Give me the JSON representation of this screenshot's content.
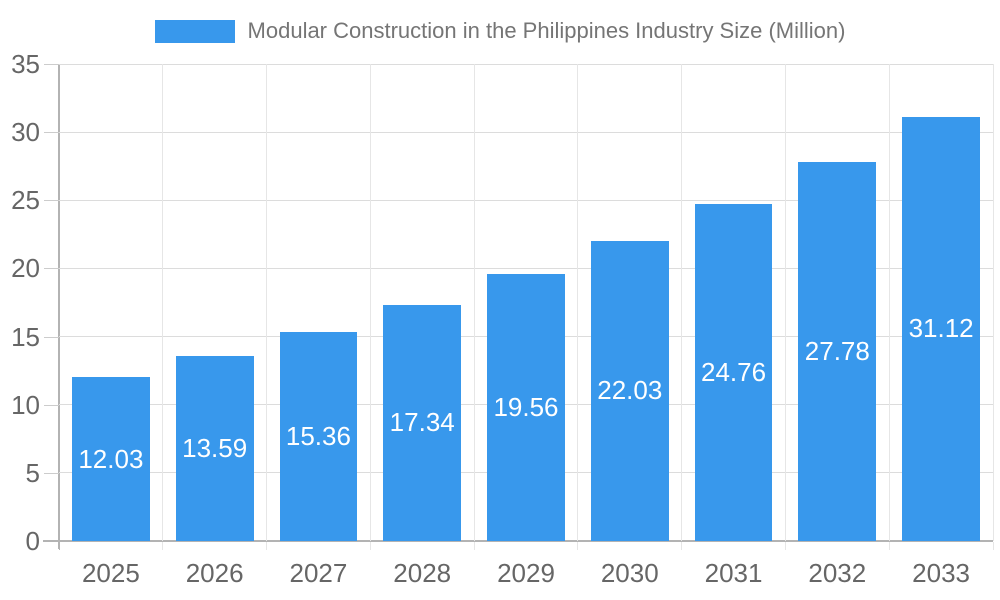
{
  "legend": {
    "label": "Modular Construction in the Philippines Industry Size (Million)"
  },
  "chart_data": {
    "type": "bar",
    "title": "Modular Construction in the Philippines Industry Size (Million)",
    "categories": [
      "2025",
      "2026",
      "2027",
      "2028",
      "2029",
      "2030",
      "2031",
      "2032",
      "2033"
    ],
    "values": [
      12.03,
      13.59,
      15.36,
      17.34,
      19.56,
      22.03,
      24.76,
      27.78,
      31.12
    ],
    "value_labels": [
      "12.03",
      "13.59",
      "15.36",
      "17.34",
      "19.56",
      "22.03",
      "24.76",
      "27.78",
      "31.12"
    ],
    "xlabel": "",
    "ylabel": "",
    "ylim": [
      0,
      35
    ],
    "y_ticks": [
      0,
      5,
      10,
      15,
      20,
      25,
      30,
      35
    ],
    "grid": true,
    "legend_position": "top-center",
    "colors": {
      "bar": "#3898EC",
      "bar_label": "#ffffff",
      "axis_line": "#b3b3b3",
      "grid_horizontal": "#dcdcdc",
      "grid_vertical": "#e6e6e6",
      "tick": "#cccccc",
      "tick_label": "#666666",
      "legend_text": "#757575",
      "background": "#ffffff"
    }
  }
}
